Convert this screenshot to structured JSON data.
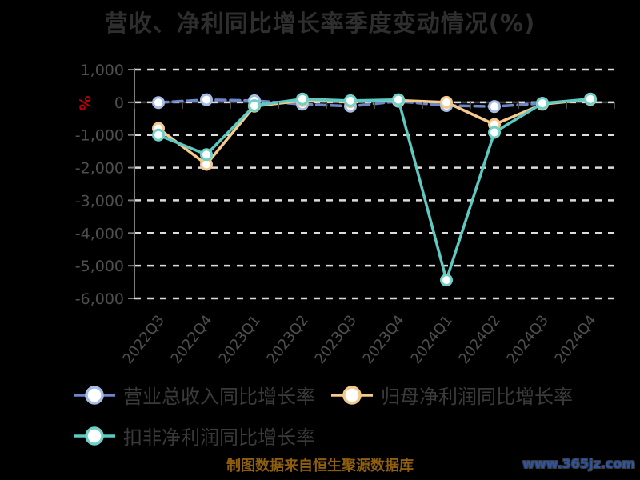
{
  "source_note": "制图数据来自恒生聚源数据库",
  "watermark": "www.365jz.com",
  "colors": {
    "background": "#000000",
    "title_text": "#2e2e2e",
    "axis_label": "#4f4f4f",
    "axis_line": "#7d7d7d",
    "gridline": "#dcdcdc",
    "x_axis_zero_line": "#3d3d3d",
    "y_name_red": "#c40000",
    "legend_text": "#3a3a3a",
    "source_note_text": "#8f5f0f",
    "watermark_text": "#2a55a8"
  },
  "chart_data": {
    "type": "line",
    "title": "营收、净利同比增长率季度变动情况(%)",
    "ylabel": "%",
    "xlabel": "",
    "grid": true,
    "legend_position": "bottom",
    "ylim": [
      -6000,
      1000
    ],
    "y_ticks": [
      1000,
      0,
      -1000,
      -2000,
      -3000,
      -4000,
      -5000,
      -6000
    ],
    "y_tick_labels": [
      "1,000",
      "0",
      "-1,000",
      "-2,000",
      "-3,000",
      "-4,000",
      "-5,000",
      "-6,000"
    ],
    "categories": [
      "2022Q3",
      "2022Q4",
      "2023Q1",
      "2023Q2",
      "2023Q3",
      "2023Q4",
      "2024Q1",
      "2024Q2",
      "2024Q3",
      "2024Q4"
    ],
    "series": [
      {
        "name": "营业总收入同比增长率",
        "color": "#6d87c8",
        "marker_color": "#a6bce4",
        "dashed": true,
        "values": [
          -10,
          80,
          50,
          -60,
          -120,
          30,
          -100,
          -130,
          -30,
          90
        ]
      },
      {
        "name": "归母净利润同比增长率",
        "color": "#f6c98c",
        "marker_color": "#f3c98b",
        "dashed": false,
        "values": [
          -800,
          -1900,
          -120,
          50,
          20,
          60,
          0,
          -680,
          -60,
          90
        ]
      },
      {
        "name": "扣非净利润同比增长率",
        "color": "#5ec9c1",
        "marker_color": "#6fd0c8",
        "dashed": false,
        "values": [
          -1000,
          -1600,
          -100,
          100,
          50,
          80,
          -5440,
          -920,
          -30,
          100
        ]
      }
    ]
  }
}
